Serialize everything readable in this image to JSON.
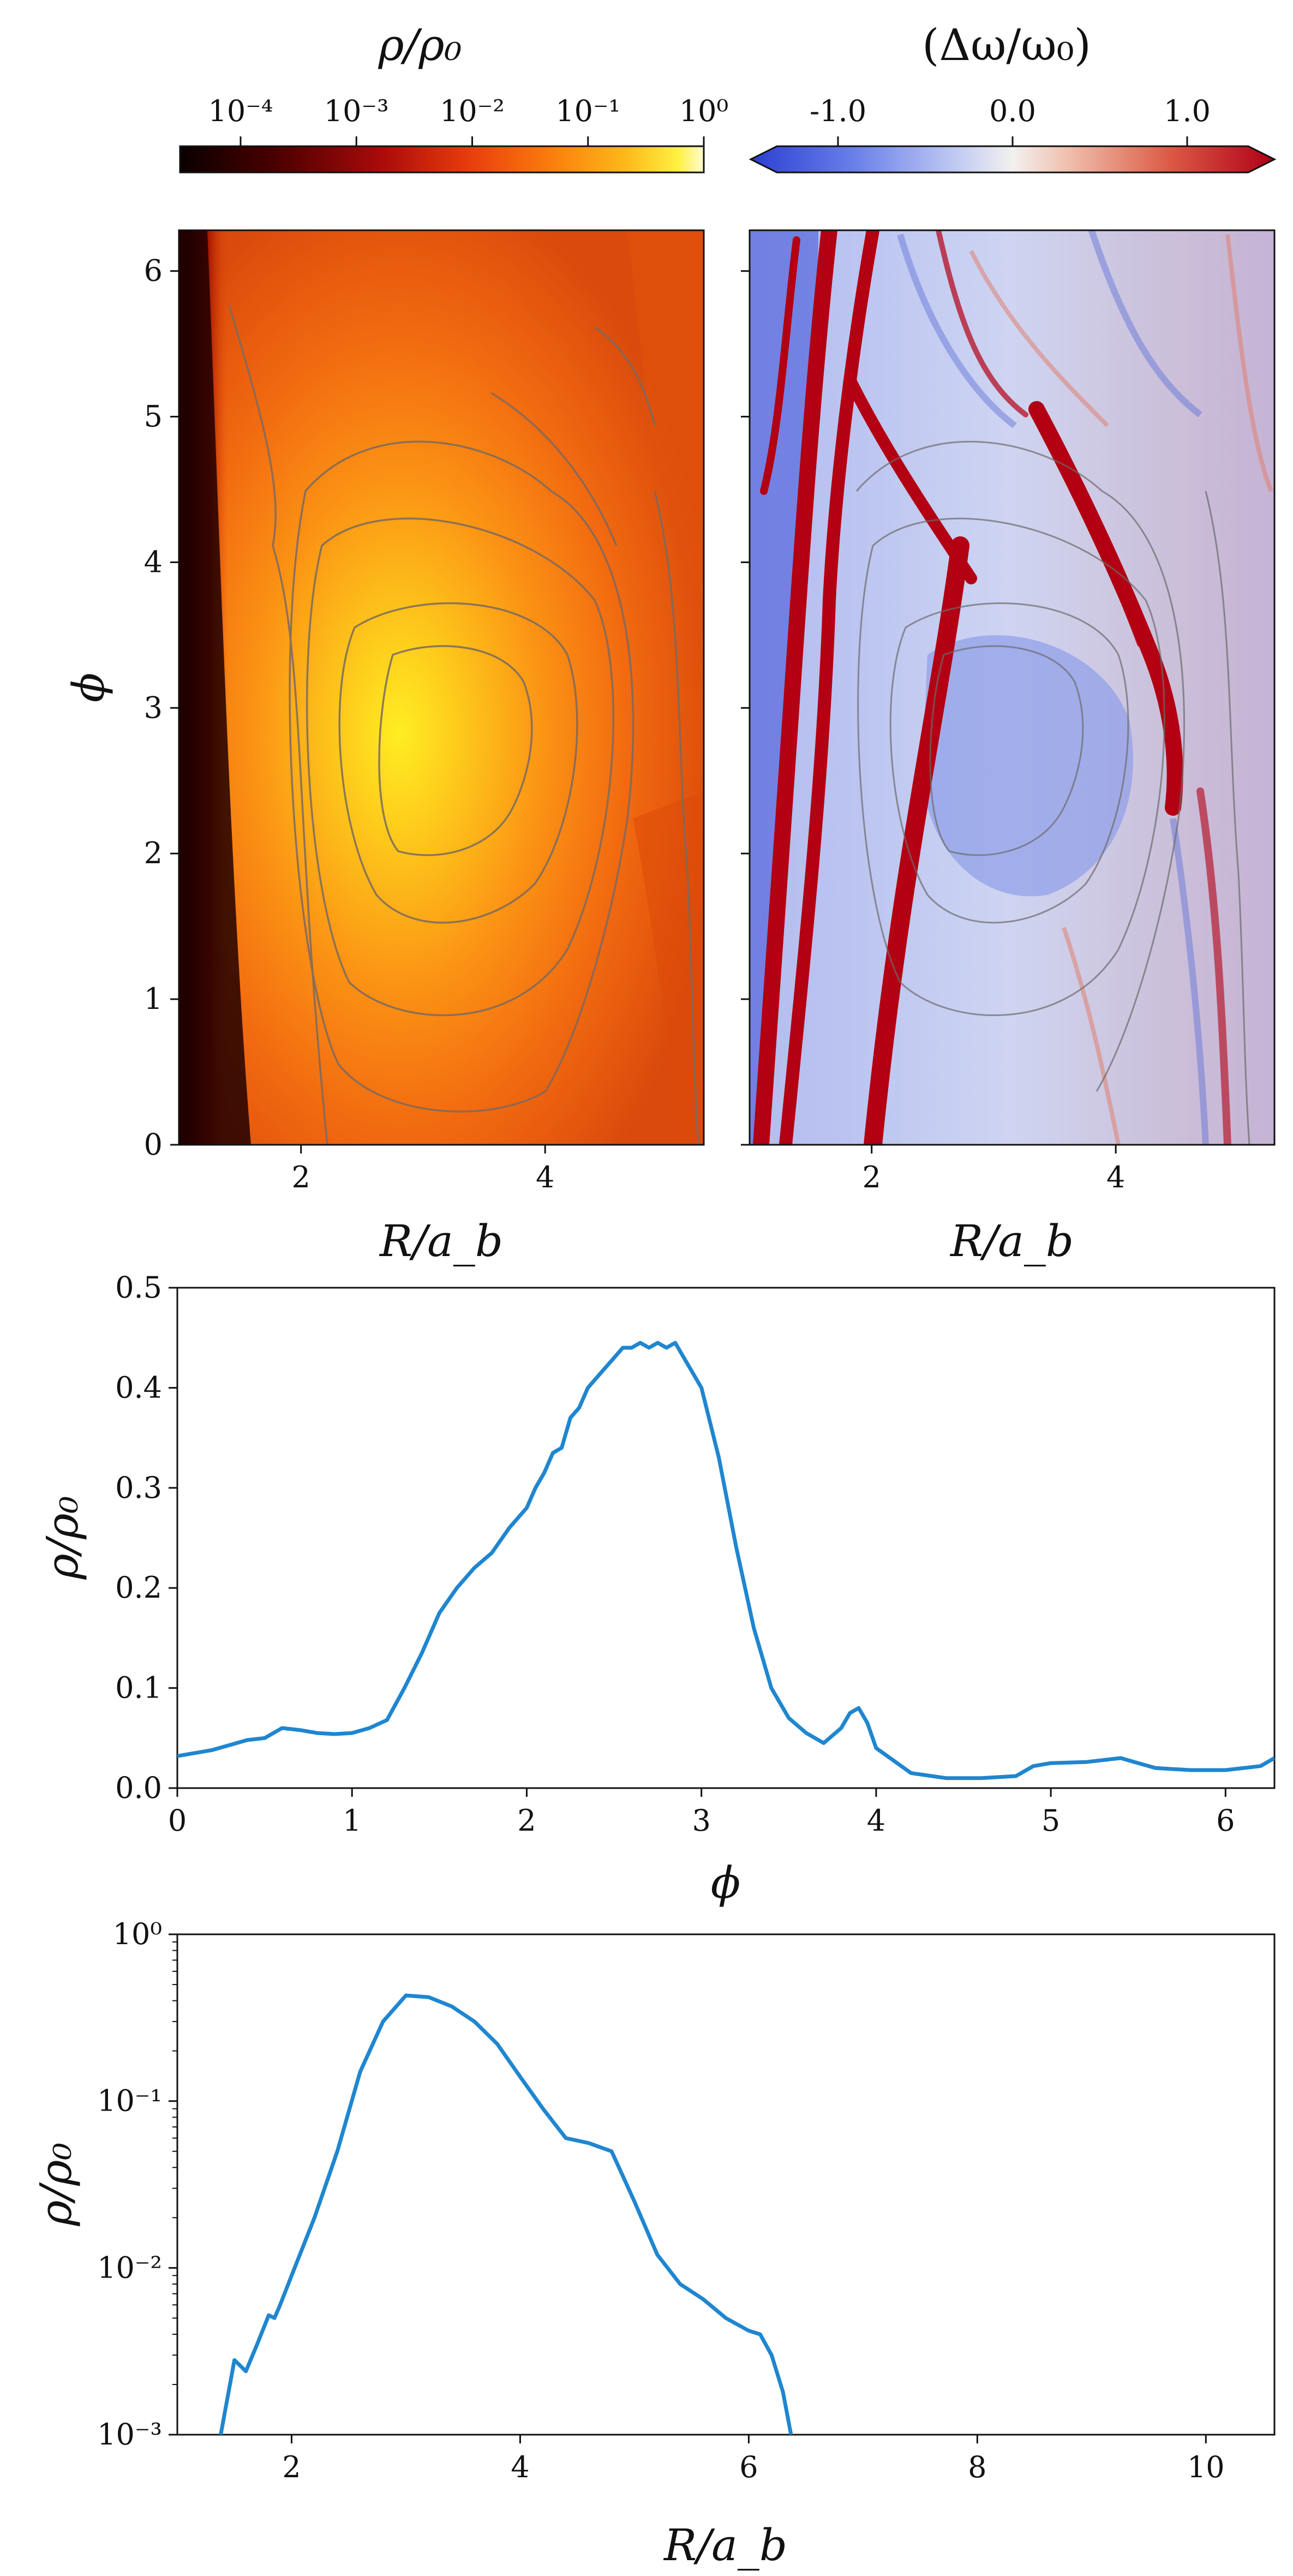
{
  "chart_data": [
    {
      "type": "heatmap",
      "panel": "density-map",
      "colorbar": {
        "title": "ρ/ρ₀",
        "scale": "log",
        "range": [
          3e-05,
          1
        ],
        "tick_labels": [
          "10⁻⁴",
          "10⁻³",
          "10⁻²",
          "10⁻¹",
          "10⁰"
        ],
        "tick_values": [
          0.0001,
          0.001,
          0.01,
          0.1,
          1
        ],
        "colormap": "hot"
      },
      "xlabel": "R/a_b",
      "ylabel": "ϕ",
      "xlim": [
        1.0,
        5.3
      ],
      "ylim": [
        0,
        6.28
      ],
      "x_ticks": [
        "2",
        "4"
      ],
      "y_ticks": [
        "0",
        "1",
        "2",
        "3",
        "4",
        "5",
        "6"
      ],
      "peak": {
        "R": 3.1,
        "phi": 2.7,
        "value": 0.45
      },
      "contour_levels": [
        0.0003,
        0.003,
        0.03,
        0.1,
        0.3
      ]
    },
    {
      "type": "heatmap",
      "panel": "frequency-shift-map",
      "colorbar": {
        "title": "(Δω/ω₀)",
        "scale": "linear",
        "range": [
          -1.5,
          1.5
        ],
        "tick_labels": [
          "-1.0",
          "0.0",
          "1.0"
        ],
        "tick_values": [
          -1.0,
          0.0,
          1.0
        ],
        "colormap": "coolwarm",
        "extend": "both"
      },
      "xlabel": "R/a_b",
      "xlim": [
        1.0,
        5.3
      ],
      "ylim": [
        0,
        6.28
      ],
      "x_ticks": [
        "2",
        "4"
      ]
    },
    {
      "type": "line",
      "panel": "azimuthal-profile",
      "xlabel": "ϕ",
      "ylabel": "ρ/ρ₀",
      "xlim": [
        0,
        6.28
      ],
      "ylim": [
        0,
        0.5
      ],
      "x_ticks": [
        "0",
        "1",
        "2",
        "3",
        "4",
        "5",
        "6"
      ],
      "y_ticks": [
        "0.0",
        "0.1",
        "0.2",
        "0.3",
        "0.4",
        "0.5"
      ],
      "color": "#1f86d0",
      "series": [
        {
          "x": [
            0,
            0.2,
            0.4,
            0.5,
            0.6,
            0.7,
            0.8,
            0.9,
            1.0,
            1.1,
            1.2,
            1.3,
            1.4,
            1.5,
            1.6,
            1.7,
            1.8,
            1.9,
            2.0,
            2.05,
            2.1,
            2.15,
            2.2,
            2.25,
            2.3,
            2.35,
            2.4,
            2.45,
            2.5,
            2.55,
            2.6,
            2.65,
            2.7,
            2.75,
            2.8,
            2.85,
            2.9,
            3.0,
            3.1,
            3.2,
            3.3,
            3.4,
            3.5,
            3.6,
            3.7,
            3.8,
            3.85,
            3.9,
            3.95,
            4.0,
            4.2,
            4.4,
            4.6,
            4.8,
            4.9,
            5.0,
            5.2,
            5.4,
            5.5,
            5.6,
            5.8,
            6.0,
            6.2,
            6.28
          ],
          "y": [
            0.032,
            0.038,
            0.048,
            0.05,
            0.06,
            0.058,
            0.055,
            0.054,
            0.055,
            0.06,
            0.068,
            0.1,
            0.135,
            0.175,
            0.2,
            0.22,
            0.235,
            0.26,
            0.28,
            0.3,
            0.315,
            0.335,
            0.34,
            0.37,
            0.38,
            0.4,
            0.41,
            0.42,
            0.43,
            0.44,
            0.44,
            0.445,
            0.44,
            0.445,
            0.44,
            0.445,
            0.43,
            0.4,
            0.33,
            0.24,
            0.16,
            0.1,
            0.07,
            0.055,
            0.045,
            0.06,
            0.075,
            0.08,
            0.065,
            0.04,
            0.015,
            0.01,
            0.01,
            0.012,
            0.022,
            0.025,
            0.026,
            0.03,
            0.025,
            0.02,
            0.018,
            0.018,
            0.022,
            0.03
          ]
        }
      ]
    },
    {
      "type": "line",
      "panel": "radial-profile",
      "xlabel": "R/a_b",
      "ylabel": "ρ/ρ₀",
      "yscale": "log",
      "xlim": [
        1.0,
        10.6
      ],
      "ylim": [
        0.001,
        1
      ],
      "x_ticks": [
        "2",
        "4",
        "6",
        "8",
        "10"
      ],
      "y_tick_labels": [
        "10⁻³",
        "10⁻²",
        "10⁻¹",
        "10⁰"
      ],
      "y_tick_values": [
        0.001,
        0.01,
        0.1,
        1
      ],
      "color": "#1f86d0",
      "series": [
        {
          "x": [
            1.38,
            1.5,
            1.6,
            1.7,
            1.8,
            1.85,
            1.9,
            2.0,
            2.2,
            2.4,
            2.6,
            2.8,
            3.0,
            3.2,
            3.4,
            3.6,
            3.8,
            4.0,
            4.2,
            4.4,
            4.6,
            4.8,
            5.0,
            5.2,
            5.4,
            5.6,
            5.8,
            6.0,
            6.1,
            6.2,
            6.3,
            6.37
          ],
          "y": [
            0.001,
            0.0028,
            0.0024,
            0.0035,
            0.0052,
            0.005,
            0.006,
            0.009,
            0.02,
            0.05,
            0.15,
            0.3,
            0.43,
            0.42,
            0.37,
            0.3,
            0.22,
            0.14,
            0.09,
            0.06,
            0.056,
            0.05,
            0.025,
            0.012,
            0.008,
            0.0065,
            0.005,
            0.0042,
            0.004,
            0.003,
            0.0018,
            0.001
          ]
        }
      ]
    }
  ]
}
